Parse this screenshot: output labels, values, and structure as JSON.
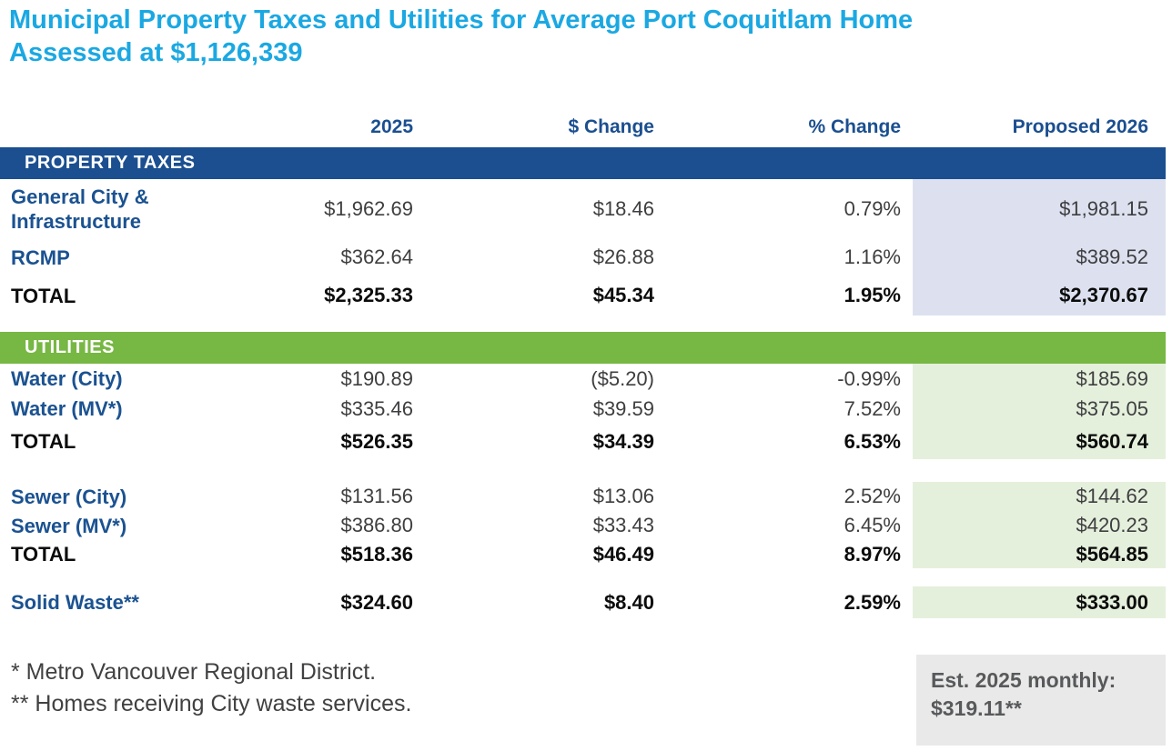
{
  "title": "Municipal Property Taxes and Utilities for Average Port Coquitlam Home Assessed at $1,126,339",
  "chart_data": {
    "type": "table",
    "title": "Municipal Property Taxes and Utilities for Average Port Coquitlam Home Assessed at $1,126,339",
    "columns": [
      "",
      "2025",
      "$ Change",
      "% Change",
      "Proposed 2026"
    ],
    "sections": [
      {
        "name": "PROPERTY TAXES",
        "groups": [
          {
            "rows": [
              [
                "General City & Infrastructure",
                "$1,962.69",
                "$18.46",
                "0.79%",
                "$1,981.15"
              ],
              [
                "RCMP",
                "$362.64",
                "$26.88",
                "1.16%",
                "$389.52"
              ],
              [
                "TOTAL",
                "$2,325.33",
                "$45.34",
                "1.95%",
                "$2,370.67"
              ]
            ]
          }
        ]
      },
      {
        "name": "UTILITIES",
        "groups": [
          {
            "rows": [
              [
                "Water (City)",
                "$190.89",
                "($5.20)",
                "-0.99%",
                "$185.69"
              ],
              [
                "Water (MV*)",
                "$335.46",
                "$39.59",
                "7.52%",
                "$375.05"
              ],
              [
                "TOTAL",
                "$526.35",
                "$34.39",
                "6.53%",
                "$560.74"
              ]
            ]
          },
          {
            "rows": [
              [
                "Sewer (City)",
                "$131.56",
                "$13.06",
                "2.52%",
                "$144.62"
              ],
              [
                "Sewer (MV*)",
                "$386.80",
                "$33.43",
                "6.45%",
                "$420.23"
              ],
              [
                "TOTAL",
                "$518.36",
                "$46.49",
                "8.97%",
                "$564.85"
              ]
            ]
          },
          {
            "rows": [
              [
                "Solid Waste**",
                "$324.60",
                "$8.40",
                "2.59%",
                "$333.00"
              ]
            ]
          }
        ]
      }
    ],
    "footnotes": [
      "* Metro Vancouver Regional District.",
      "** Homes receiving City waste services."
    ],
    "note": "Est. 2025 monthly: $319.11**"
  },
  "colors": {
    "title_blue": "#1BA8E2",
    "navy": "#1B4F90",
    "green": "#77B743",
    "shade_blue": "#DDE1EF",
    "shade_green": "#E5F0DC",
    "note_box_bg": "#E9E9E9",
    "note_text": "#58595B"
  }
}
